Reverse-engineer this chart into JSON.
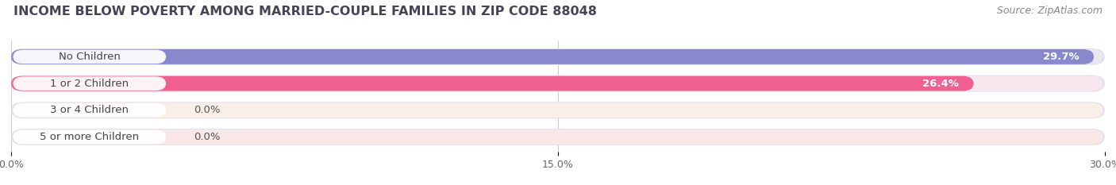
{
  "title": "INCOME BELOW POVERTY AMONG MARRIED-COUPLE FAMILIES IN ZIP CODE 88048",
  "source": "Source: ZipAtlas.com",
  "categories": [
    "No Children",
    "1 or 2 Children",
    "3 or 4 Children",
    "5 or more Children"
  ],
  "values": [
    29.7,
    26.4,
    0.0,
    0.0
  ],
  "bar_colors": [
    "#8888cc",
    "#f06090",
    "#f5c898",
    "#f4a0a0"
  ],
  "bar_bg_colors": [
    "#e8e8f0",
    "#f8e8f0",
    "#f8f0e8",
    "#f8e8e8"
  ],
  "xlim": [
    0,
    30.0
  ],
  "xticks": [
    0.0,
    15.0,
    30.0
  ],
  "xtick_labels": [
    "0.0%",
    "15.0%",
    "30.0%"
  ],
  "value_labels": [
    "29.7%",
    "26.4%",
    "0.0%",
    "0.0%"
  ],
  "background_color": "#ffffff",
  "title_fontsize": 11.5,
  "label_fontsize": 9.5,
  "tick_fontsize": 9,
  "source_fontsize": 9
}
